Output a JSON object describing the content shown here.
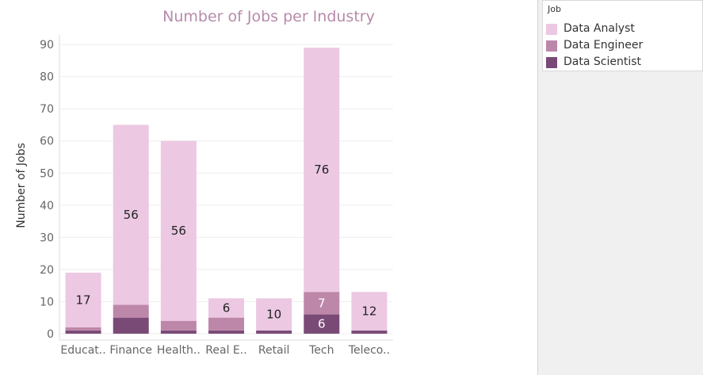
{
  "chart_data": {
    "type": "bar",
    "stacked": true,
    "title": "Number of Jobs per Industry",
    "xlabel": "",
    "ylabel": "Number of Jobs",
    "ylim": [
      -2,
      93
    ],
    "yticks": [
      0,
      10,
      20,
      30,
      40,
      50,
      60,
      70,
      80,
      90
    ],
    "grid": true,
    "categories": [
      "Educat..",
      "Finance",
      "Health..",
      "Real E..",
      "Retail",
      "Tech",
      "Teleco.."
    ],
    "series": [
      {
        "name": "Data Scientist",
        "color": "#7a4a77",
        "values": [
          1,
          5,
          1,
          1,
          1,
          6,
          1
        ],
        "labels": [
          "",
          "",
          "",
          "",
          "",
          "6",
          ""
        ]
      },
      {
        "name": "Data Engineer",
        "color": "#bd87a9",
        "values": [
          1,
          4,
          3,
          4,
          0,
          7,
          0
        ],
        "labels": [
          "",
          "",
          "",
          "",
          "",
          "7",
          ""
        ]
      },
      {
        "name": "Data Analyst",
        "color": "#ecc8e2",
        "values": [
          17,
          56,
          56,
          6,
          10,
          76,
          12
        ],
        "labels": [
          "17",
          "56",
          "56",
          "6",
          "10",
          "76",
          "12"
        ]
      }
    ]
  },
  "legend": {
    "title": "Job",
    "placement": "top-right",
    "items": [
      {
        "label": "Data Analyst",
        "color": "#ecc8e2"
      },
      {
        "label": "Data Engineer",
        "color": "#bd87a9"
      },
      {
        "label": "Data Scientist",
        "color": "#7a4a77"
      }
    ]
  }
}
